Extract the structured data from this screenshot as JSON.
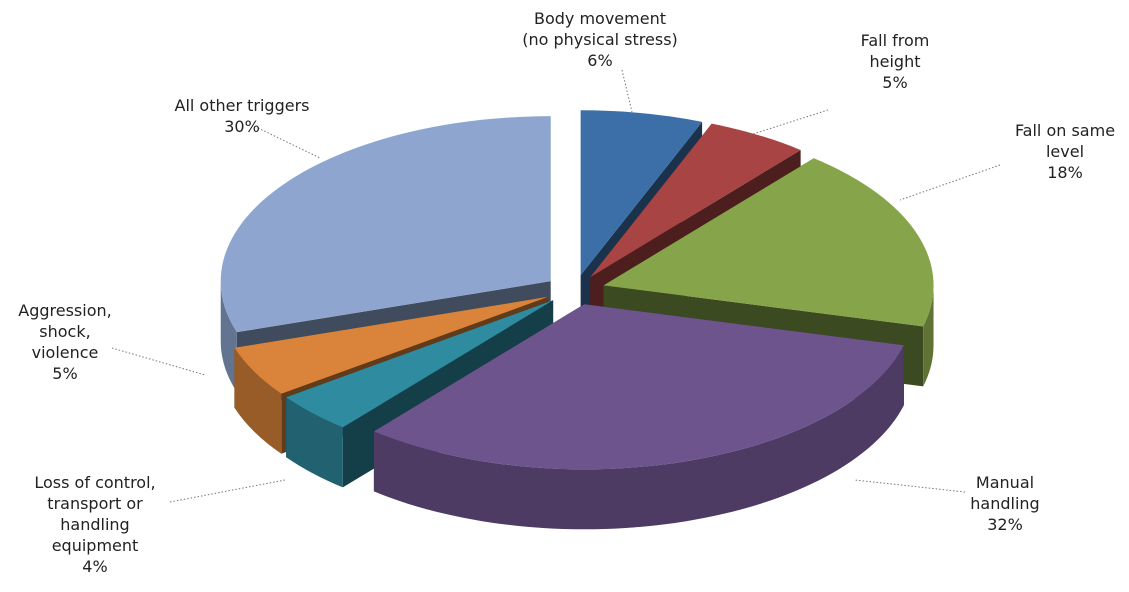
{
  "chart_data": {
    "type": "pie",
    "categories": [
      "Body movement\n(no physical stress)",
      "Fall from\nheight",
      "Fall on same\nlevel",
      "Manual\nhandling",
      "Loss of control,\ntransport or\nhandling\nequipment",
      "Aggression,\nshock,\nviolence",
      "All other triggers"
    ],
    "values": [
      6,
      5,
      18,
      32,
      4,
      5,
      30
    ],
    "value_labels": [
      "6%",
      "5%",
      "18%",
      "32%",
      "4%",
      "5%",
      "30%"
    ],
    "colors": [
      "#3c6fa8",
      "#a84443",
      "#86a44a",
      "#6e548d",
      "#2f8ba0",
      "#d9843a",
      "#8ea6cf"
    ]
  }
}
